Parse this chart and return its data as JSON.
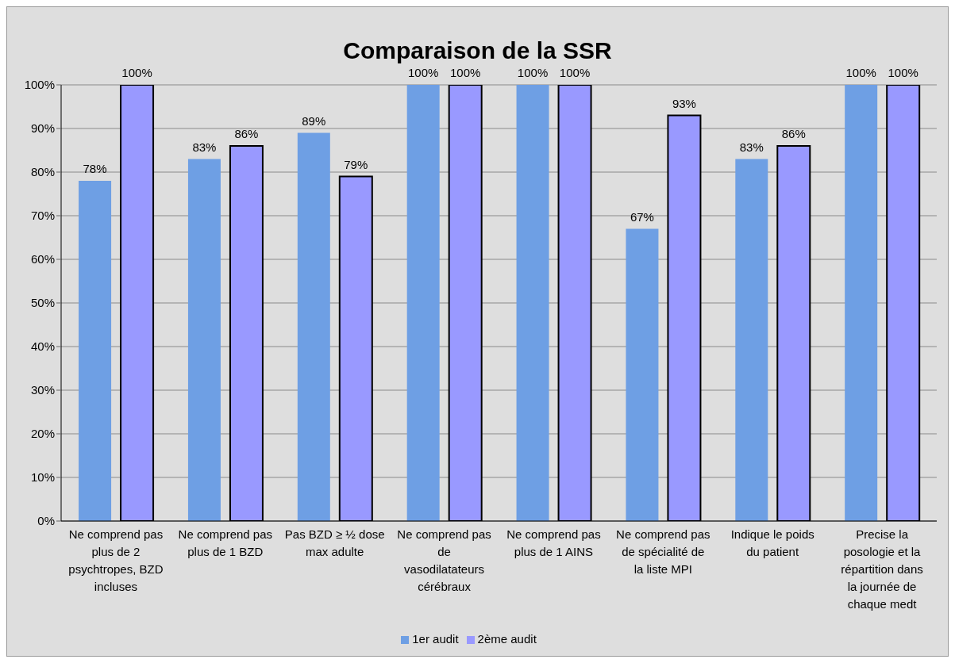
{
  "chart_data": {
    "type": "bar",
    "title": "Comparaison de la SSR",
    "categories": [
      "Ne comprend pas plus de 2 psychtropes, BZD incluses",
      "Ne comprend pas plus de 1 BZD",
      "Pas BZD ≥ ½ dose max adulte",
      "Ne comprend pas de vasodilatateurs cérébraux",
      "Ne comprend pas plus de 1 AINS",
      "Ne comprend pas de spécialité de la liste MPI",
      "Indique le poids du patient",
      "Precise la posologie et la répartition dans la journée de chaque medt"
    ],
    "series": [
      {
        "name": "1er audit",
        "color": "#6e9fe4",
        "values": [
          78,
          83,
          89,
          100,
          100,
          67,
          83,
          100
        ],
        "value_labels": [
          "78%",
          "83%",
          "89%",
          "100%",
          "100%",
          "67%",
          "83%",
          "100%"
        ]
      },
      {
        "name": "2ème audit",
        "color": "#9999ff",
        "values": [
          100,
          86,
          79,
          100,
          100,
          93,
          86,
          100
        ],
        "value_labels": [
          "100%",
          "86%",
          "79%",
          "100%",
          "100%",
          "93%",
          "86%",
          "100%"
        ]
      }
    ],
    "ylim": [
      0,
      100
    ],
    "yticks": [
      {
        "value": 0,
        "label": "0%"
      },
      {
        "value": 10,
        "label": "10%"
      },
      {
        "value": 20,
        "label": "20%"
      },
      {
        "value": 30,
        "label": "30%"
      },
      {
        "value": 40,
        "label": "40%"
      },
      {
        "value": 50,
        "label": "50%"
      },
      {
        "value": 60,
        "label": "60%"
      },
      {
        "value": 70,
        "label": "70%"
      },
      {
        "value": 80,
        "label": "80%"
      },
      {
        "value": 90,
        "label": "90%"
      },
      {
        "value": 100,
        "label": "100%"
      }
    ],
    "grid": "y",
    "legend": "bottom"
  }
}
